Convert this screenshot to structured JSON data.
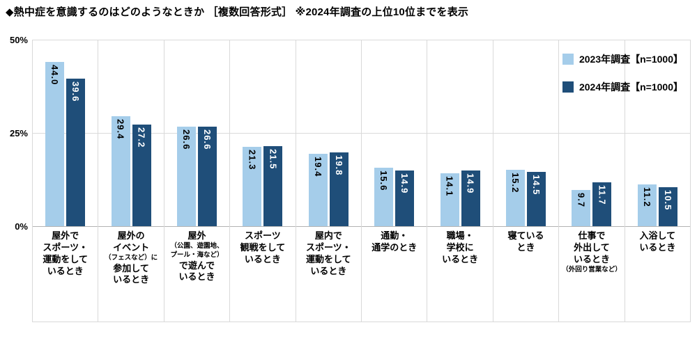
{
  "title": "◆熱中症を意識するのはどのようなときか ［複数回答形式］ ※2024年調査の上位10位までを表示",
  "y_axis": {
    "ticks": [
      "50%",
      "25%",
      "0%"
    ],
    "max": 50
  },
  "legend": [
    {
      "label": "2023年調査【n=1000】",
      "color": "#a5cdea"
    },
    {
      "label": "2024年調査【n=1000】",
      "color": "#1f4e79"
    }
  ],
  "chart_data": {
    "type": "bar",
    "title": "熱中症を意識するのはどのようなときか（複数回答形式）2024年調査の上位10位までを表示",
    "ylim": [
      0,
      50
    ],
    "grid": "horizontal at 25% and 50%, vertical category dividers",
    "legend_position": "top-right inside plot",
    "categories": [
      {
        "name": "屋外でスポーツ・運動をしているとき",
        "lines": [
          {
            "t": "屋外で"
          },
          {
            "t": "スポーツ・"
          },
          {
            "t": "運動をして"
          },
          {
            "t": "いるとき"
          }
        ]
      },
      {
        "name": "屋外のイベント（フェスなど）に参加しているとき",
        "lines": [
          {
            "t": "屋外の"
          },
          {
            "t": "イベント"
          },
          {
            "t": "（フェスなど）に",
            "small": true
          },
          {
            "t": "参加して"
          },
          {
            "t": "いるとき"
          }
        ]
      },
      {
        "name": "屋外（公園、遊園地、プール・海など）で遊んでいるとき",
        "lines": [
          {
            "t": "屋外"
          },
          {
            "t": "（公園、遊園地、",
            "small": true
          },
          {
            "t": "プール・海など）",
            "small": true
          },
          {
            "t": "で遊んで"
          },
          {
            "t": "いるとき"
          }
        ]
      },
      {
        "name": "スポーツ観戦をしているとき",
        "lines": [
          {
            "t": "スポーツ"
          },
          {
            "t": "観戦をして"
          },
          {
            "t": "いるとき"
          }
        ]
      },
      {
        "name": "屋内でスポーツ・運動をしているとき",
        "lines": [
          {
            "t": "屋内で"
          },
          {
            "t": "スポーツ・"
          },
          {
            "t": "運動をして"
          },
          {
            "t": "いるとき"
          }
        ]
      },
      {
        "name": "通勤・通学のとき",
        "lines": [
          {
            "t": "通勤・"
          },
          {
            "t": "通学のとき"
          }
        ]
      },
      {
        "name": "職場・学校にいるとき",
        "lines": [
          {
            "t": "職場・"
          },
          {
            "t": "学校に"
          },
          {
            "t": "いるとき"
          }
        ]
      },
      {
        "name": "寝ているとき",
        "lines": [
          {
            "t": "寝ている"
          },
          {
            "t": "とき"
          }
        ]
      },
      {
        "name": "仕事で外出しているとき（外回り営業など）",
        "lines": [
          {
            "t": "仕事で"
          },
          {
            "t": "外出して"
          },
          {
            "t": "いるとき"
          },
          {
            "t": "（外回り営業など）",
            "small": true
          }
        ]
      },
      {
        "name": "入浴しているとき",
        "lines": [
          {
            "t": "入浴して"
          },
          {
            "t": "いるとき"
          }
        ]
      }
    ],
    "series": [
      {
        "name": "2023年調査【n=1000】",
        "key": "2023",
        "color": "#a5cdea",
        "label_color": "#000000",
        "values": [
          44.0,
          29.4,
          26.6,
          21.3,
          19.4,
          15.6,
          14.1,
          15.2,
          9.7,
          11.2
        ]
      },
      {
        "name": "2024年調査【n=1000】",
        "key": "2024",
        "color": "#1f4e79",
        "label_color": "#ffffff",
        "values": [
          39.6,
          27.2,
          26.6,
          21.5,
          19.8,
          14.9,
          14.9,
          14.5,
          11.7,
          10.5
        ]
      }
    ]
  }
}
